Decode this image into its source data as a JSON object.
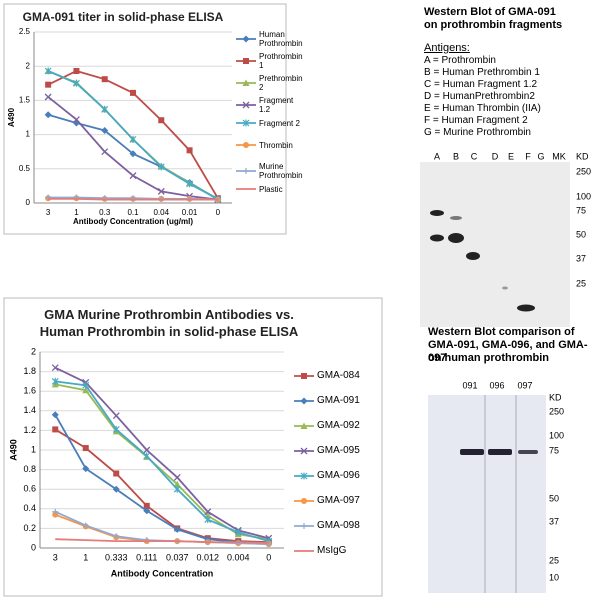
{
  "chart_data": [
    {
      "type": "line",
      "title": "GMA-091 titer in solid-phase ELISA",
      "x_label": "Antibody Concentration (ug/ml)",
      "y_label": "A490",
      "categories": [
        "3",
        "1",
        "0.3",
        "0.1",
        "0.04",
        "0.01",
        "0"
      ],
      "ylim": [
        0,
        2.5
      ],
      "yticks": [
        0,
        0.5,
        1,
        1.5,
        2,
        2.5
      ],
      "series": [
        {
          "name": "Human Prothrombin",
          "color": "#4a7ebb",
          "marker": "diamond",
          "values": [
            1.29,
            1.17,
            1.06,
            0.72,
            0.53,
            0.3,
            0.05
          ]
        },
        {
          "name": "Prothrombin 1",
          "color": "#be4b48",
          "marker": "square",
          "values": [
            1.73,
            1.93,
            1.81,
            1.61,
            1.21,
            0.77,
            0.07
          ]
        },
        {
          "name": "Prethrombin 2",
          "color": "#98b954",
          "marker": "triangle",
          "values": [
            1.93,
            1.76,
            1.37,
            0.93,
            0.54,
            0.29,
            0.06
          ]
        },
        {
          "name": "Fragment 1.2",
          "color": "#7d60a0",
          "marker": "x",
          "values": [
            1.55,
            1.22,
            0.75,
            0.4,
            0.17,
            0.1,
            0.05
          ]
        },
        {
          "name": "Fragment 2",
          "color": "#46aac5",
          "marker": "star",
          "values": [
            1.93,
            1.75,
            1.37,
            0.93,
            0.53,
            0.28,
            0.06
          ]
        },
        {
          "name": "Thrombin",
          "color": "#f79646",
          "marker": "circle",
          "values": [
            0.07,
            0.07,
            0.06,
            0.06,
            0.06,
            0.06,
            0.05
          ]
        },
        {
          "name": "Murine Prothrombin",
          "color": "#92a9cf",
          "marker": "plus",
          "values": [
            0.08,
            0.08,
            0.07,
            0.07,
            0.06,
            0.06,
            0.05
          ]
        },
        {
          "name": "Plastic",
          "color": "#e57c7a",
          "marker": "none",
          "values": [
            0.06,
            0.06,
            0.05,
            0.05,
            0.05,
            0.05,
            0.05
          ]
        }
      ]
    },
    {
      "type": "line",
      "title": "GMA Murine Prothrombin Antibodies vs. Human Prothrombin in solid-phase ELISA",
      "x_label": "Antibody Concentration",
      "y_label": "A490",
      "categories": [
        "3",
        "1",
        "0.333",
        "0.111",
        "0.037",
        "0.012",
        "0.004",
        "0"
      ],
      "ylim": [
        0,
        2
      ],
      "yticks": [
        0,
        0.2,
        0.4,
        0.6,
        0.8,
        1,
        1.2,
        1.4,
        1.6,
        1.8,
        2
      ],
      "series": [
        {
          "name": "GMA-084",
          "color": "#be4b48",
          "marker": "square",
          "values": [
            1.21,
            1.02,
            0.76,
            0.43,
            0.2,
            0.1,
            0.07,
            0.06
          ]
        },
        {
          "name": "GMA-091",
          "color": "#4a7ebb",
          "marker": "diamond",
          "values": [
            1.36,
            0.81,
            0.6,
            0.38,
            0.19,
            0.09,
            0.06,
            0.05
          ]
        },
        {
          "name": "GMA-092",
          "color": "#98b954",
          "marker": "triangle",
          "values": [
            1.67,
            1.61,
            1.19,
            0.93,
            0.65,
            0.33,
            0.14,
            0.09
          ]
        },
        {
          "name": "GMA-095",
          "color": "#7d60a0",
          "marker": "x",
          "values": [
            1.84,
            1.69,
            1.35,
            1,
            0.72,
            0.37,
            0.18,
            0.1
          ]
        },
        {
          "name": "GMA-096",
          "color": "#46aac5",
          "marker": "star",
          "values": [
            1.7,
            1.66,
            1.21,
            0.94,
            0.6,
            0.29,
            0.16,
            0.07
          ]
        },
        {
          "name": "GMA-097",
          "color": "#f79646",
          "marker": "circle",
          "values": [
            0.34,
            0.22,
            0.11,
            0.07,
            0.07,
            0.06,
            0.05,
            0.04
          ]
        },
        {
          "name": "GMA-098",
          "color": "#92a9cf",
          "marker": "plus",
          "values": [
            0.37,
            0.23,
            0.12,
            0.08,
            0.07,
            0.06,
            0.05,
            0.04
          ]
        },
        {
          "name": "MsIgG",
          "color": "#e57c7a",
          "marker": "none",
          "values": [
            0.09,
            0.08,
            0.07,
            0.07,
            0.07,
            0.06,
            0.06,
            0.05
          ]
        }
      ]
    }
  ],
  "blot1": {
    "title": [
      "Western Blot of GMA-091",
      "on prothrombin fragments"
    ],
    "antigens_heading": "Antigens:",
    "antigens": [
      "A = Prothrombin",
      "B = Human Prethrombin 1",
      "C = Human Fragment 1.2",
      "D = HumanPrethrombin2",
      "E = Human Thrombin (IIA)",
      "F = Human Fragment 2",
      "G = Murine Prothrombin"
    ],
    "lanes": [
      "A",
      "B",
      "C",
      "D",
      "E",
      "F",
      "G",
      "MK"
    ],
    "kd_label": "KD",
    "kd_markers": [
      250,
      100,
      75,
      50,
      37,
      25
    ]
  },
  "blot2": {
    "title": [
      "Western Blot comparison of",
      "GMA-091, GMA-096, and GMA-097",
      "on human prothrombin"
    ],
    "lanes": [
      "091",
      "096",
      "097"
    ],
    "kd_label": "KD",
    "kd_markers": [
      250,
      100,
      75,
      50,
      37,
      25,
      10
    ]
  }
}
